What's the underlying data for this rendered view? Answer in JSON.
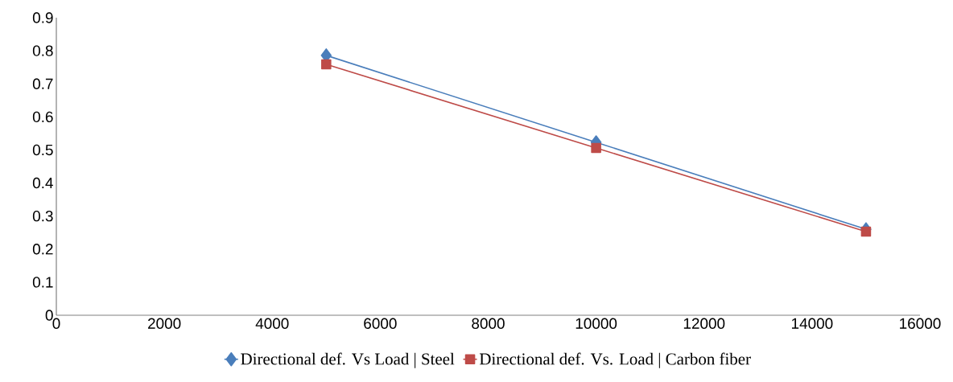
{
  "chart_data": {
    "type": "line",
    "x": [
      5000,
      10000,
      15000
    ],
    "series": [
      {
        "name": "Directional def. Vs Load | Steel",
        "color": "#4a7ebb",
        "marker": "diamond",
        "values": [
          0.786,
          0.523,
          0.26
        ]
      },
      {
        "name": "Directional def. Vs. Load | Carbon fiber",
        "color": "#be4b48",
        "marker": "square",
        "values": [
          0.759,
          0.506,
          0.253
        ]
      }
    ],
    "xlim": [
      0,
      16000
    ],
    "xticks": [
      0,
      2000,
      4000,
      6000,
      8000,
      10000,
      12000,
      14000,
      16000
    ],
    "ylim": [
      0,
      0.9
    ],
    "yticks": [
      0,
      0.1,
      0.2,
      0.3,
      0.4,
      0.5,
      0.6,
      0.7,
      0.8,
      0.9
    ],
    "grid": false,
    "legend": "bottom",
    "line_style": "solid"
  }
}
